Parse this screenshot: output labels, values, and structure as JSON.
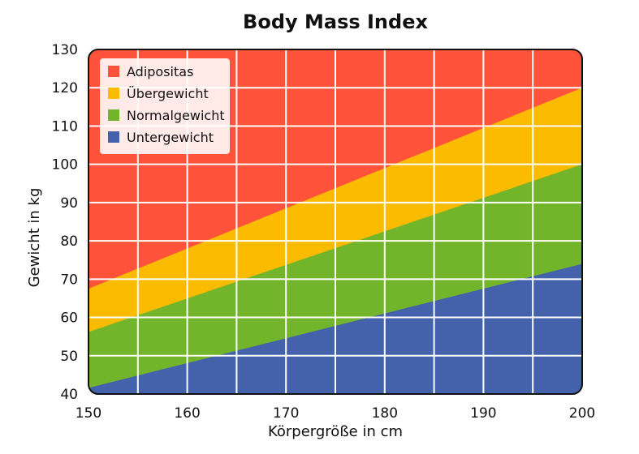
{
  "chart_data": {
    "type": "area",
    "title": "Body Mass Index",
    "xlabel": "Körpergröße in cm",
    "ylabel": "Gewicht in kg",
    "xlim": [
      150,
      200
    ],
    "ylim": [
      40,
      130
    ],
    "x_ticks": [
      "150",
      "160",
      "170",
      "180",
      "190",
      "200"
    ],
    "y_ticks": [
      "40",
      "50",
      "60",
      "70",
      "80",
      "90",
      "100",
      "110",
      "120",
      "130"
    ],
    "x_grid_step": 5,
    "y_grid_step": 10,
    "grid": true,
    "legend_position": "top-left",
    "x": [
      150,
      200
    ],
    "boundaries": [
      {
        "between": [
          "Untergewicht",
          "Normalgewicht"
        ],
        "y": [
          41.6,
          74.0
        ]
      },
      {
        "between": [
          "Normalgewicht",
          "Übergewicht"
        ],
        "y": [
          56.2,
          100.0
        ]
      },
      {
        "between": [
          "Übergewicht",
          "Adipositas"
        ],
        "y": [
          67.5,
          120.0
        ]
      }
    ],
    "series": [
      {
        "name": "Adipositas",
        "color": "#fe533a"
      },
      {
        "name": "Übergewicht",
        "color": "#fbbb00"
      },
      {
        "name": "Normalgewicht",
        "color": "#72b52b"
      },
      {
        "name": "Untergewicht",
        "color": "#4462ac"
      }
    ]
  }
}
